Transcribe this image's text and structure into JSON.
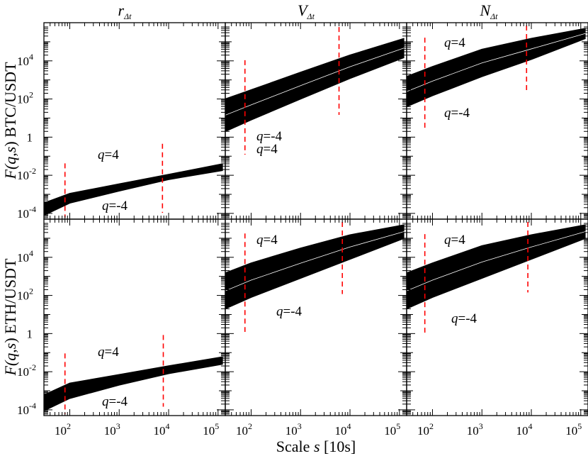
{
  "figure": {
    "xlabel_prefix": "Scale ",
    "xlabel_var": "s",
    "xlabel_unit": " [10s]",
    "ylabel_prefix": "F(",
    "ylabel_q": "q",
    "ylabel_comma": ",",
    "ylabel_s": "s",
    "ylabel_suffix": ")",
    "columns": [
      {
        "symbol": "r",
        "subscript": "Δt"
      },
      {
        "symbol": "V",
        "subscript": "Δt"
      },
      {
        "symbol": "N",
        "subscript": "Δt"
      }
    ],
    "rows": [
      {
        "label": " BTC/USDT"
      },
      {
        "label": " ETH/USDT"
      }
    ],
    "x_ticks": [
      {
        "base": "10",
        "exp": "2",
        "value": 100
      },
      {
        "base": "10",
        "exp": "3",
        "value": 1000
      },
      {
        "base": "10",
        "exp": "4",
        "value": 10000
      },
      {
        "base": "10",
        "exp": "5",
        "value": 100000
      }
    ],
    "y_ticks": [
      {
        "base": "10",
        "exp": "-4",
        "value": 0.0001
      },
      {
        "base": "10",
        "exp": "-2",
        "value": 0.01
      },
      {
        "base": "1",
        "exp": "",
        "value": 1
      },
      {
        "base": "10",
        "exp": "2",
        "value": 100
      },
      {
        "base": "10",
        "exp": "4",
        "value": 10000
      }
    ],
    "q_top_label": "q=4",
    "q_bottom_label": "q=-4",
    "colors": {
      "band": "#000000",
      "midline": "#ffffff",
      "crossover": "#ff0000"
    }
  },
  "chart_data": [
    {
      "type": "line",
      "row": "BTC/USDT",
      "column": "r_Δt",
      "x_range": [
        30,
        140000
      ],
      "y_range": [
        5e-05,
        600000
      ],
      "series": [
        {
          "name": "q=4",
          "x": [
            30,
            100,
            1000,
            10000,
            125000
          ],
          "y": [
            0.00035,
            0.0011,
            0.0035,
            0.011,
            0.04
          ]
        },
        {
          "name": "q=-4",
          "x": [
            30,
            100,
            1000,
            10000,
            125000
          ],
          "y": [
            8e-05,
            0.00035,
            0.0015,
            0.006,
            0.018
          ]
        }
      ],
      "crossovers": [
        80,
        7500
      ],
      "labels": [
        "q=4",
        "q=-4"
      ]
    },
    {
      "type": "line",
      "row": "BTC/USDT",
      "column": "V_Δt",
      "x_range": [
        30,
        140000
      ],
      "y_range": [
        5e-05,
        600000
      ],
      "series": [
        {
          "name": "q=4",
          "x": [
            30,
            100,
            1000,
            10000,
            125000
          ],
          "y": [
            100,
            300,
            2500,
            20000,
            150000
          ]
        },
        {
          "name": "q=-4",
          "x": [
            30,
            100,
            1000,
            10000,
            125000
          ],
          "y": [
            2,
            8,
            100,
            1200,
            15000
          ]
        }
      ],
      "crossovers": [
        75,
        6000
      ],
      "labels": [
        "q=4",
        "q=-4"
      ]
    },
    {
      "type": "line",
      "row": "BTC/USDT",
      "column": "N_Δt",
      "x_range": [
        30,
        140000
      ],
      "y_range": [
        5e-05,
        600000
      ],
      "series": [
        {
          "name": "q=4",
          "x": [
            30,
            100,
            1000,
            10000,
            125000
          ],
          "y": [
            1500,
            5000,
            40000,
            150000,
            500000
          ]
        },
        {
          "name": "q=-4",
          "x": [
            30,
            100,
            1000,
            10000,
            125000
          ],
          "y": [
            40,
            150,
            1500,
            12000,
            150000
          ]
        }
      ],
      "crossovers": [
        70,
        8000
      ],
      "labels": [
        "q=4",
        "q=-4"
      ]
    },
    {
      "type": "line",
      "row": "ETH/USDT",
      "column": "r_Δt",
      "x_range": [
        30,
        140000
      ],
      "y_range": [
        5e-05,
        600000
      ],
      "series": [
        {
          "name": "q=4",
          "x": [
            30,
            100,
            1000,
            10000,
            125000
          ],
          "y": [
            0.0006,
            0.0025,
            0.007,
            0.02,
            0.06
          ]
        },
        {
          "name": "q=-4",
          "x": [
            30,
            100,
            1000,
            10000,
            125000
          ],
          "y": [
            9e-05,
            0.0004,
            0.002,
            0.008,
            0.025
          ]
        }
      ],
      "crossovers": [
        80,
        7800
      ],
      "labels": [
        "q=4",
        "q=-4"
      ]
    },
    {
      "type": "line",
      "row": "ETH/USDT",
      "column": "V_Δt",
      "x_range": [
        30,
        140000
      ],
      "y_range": [
        5e-05,
        600000
      ],
      "series": [
        {
          "name": "q=4",
          "x": [
            30,
            100,
            1000,
            10000,
            125000
          ],
          "y": [
            1500,
            5000,
            30000,
            150000,
            500000
          ]
        },
        {
          "name": "q=-4",
          "x": [
            30,
            100,
            1000,
            10000,
            125000
          ],
          "y": [
            20,
            80,
            800,
            8000,
            100000
          ]
        }
      ],
      "crossovers": [
        75,
        7000
      ],
      "labels": [
        "q=4",
        "q=-4"
      ]
    },
    {
      "type": "line",
      "row": "ETH/USDT",
      "column": "N_Δt",
      "x_range": [
        30,
        140000
      ],
      "y_range": [
        5e-05,
        600000
      ],
      "series": [
        {
          "name": "q=4",
          "x": [
            30,
            100,
            1000,
            10000,
            125000
          ],
          "y": [
            1500,
            5000,
            40000,
            150000,
            500000
          ]
        },
        {
          "name": "q=-4",
          "x": [
            30,
            100,
            1000,
            10000,
            125000
          ],
          "y": [
            20,
            80,
            800,
            8000,
            100000
          ]
        }
      ],
      "crossovers": [
        70,
        8500
      ],
      "labels": [
        "q=4",
        "q=-4"
      ]
    }
  ]
}
